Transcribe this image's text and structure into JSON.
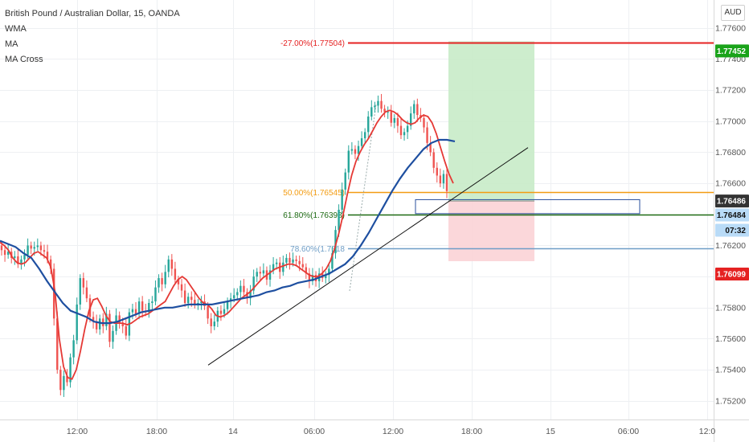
{
  "legend": {
    "title": "British Pound / Australian Dollar, 15, OANDA",
    "indicators": [
      "WMA",
      "MA",
      "MA Cross"
    ]
  },
  "currency_label": "AUD",
  "colors": {
    "candle_up": "#26a69a",
    "candle_down": "#ef5350",
    "wma_line": "#e53935",
    "ma_line": "#1e4fa0",
    "fib_neg27": "#e52222",
    "fib_50": "#f39c12",
    "fib_618": "#1f6b14",
    "fib_786": "#6f9ec7",
    "profit_zone": "#c8ebc8",
    "loss_zone": "#fbd3d6",
    "tag_green": "#1aa31a",
    "tag_red": "#e52222",
    "tag_blue": "#2262c6",
    "tag_lightblue": "#b9dbf7"
  },
  "chart_data": {
    "type": "candlestick",
    "symbol": "British Pound / Australian Dollar",
    "timeframe": "15",
    "source": "OANDA",
    "ylim": [
      1.7508,
      1.7778
    ],
    "y_ticks": [
      "1.75200",
      "1.75400",
      "1.75600",
      "1.75800",
      "1.76000",
      "1.76200",
      "1.76400",
      "1.76600",
      "1.76800",
      "1.77000",
      "1.77200",
      "1.77400",
      "1.77600",
      "1.7..."
    ],
    "x_ticks": [
      "12:00",
      "18:00",
      "14",
      "06:00",
      "12:00",
      "18:00",
      "15",
      "06:00",
      "12:0"
    ],
    "candles_close": [
      1.7617,
      1.7614,
      1.7616,
      1.7612,
      1.7613,
      1.7608,
      1.7611,
      1.7614,
      1.762,
      1.7618,
      1.7619,
      1.762,
      1.7617,
      1.7616,
      1.7611,
      1.7605,
      1.7573,
      1.754,
      1.7527,
      1.7536,
      1.7532,
      1.7548,
      1.7559,
      1.7582,
      1.7599,
      1.7593,
      1.7586,
      1.7574,
      1.7571,
      1.7566,
      1.7573,
      1.7568,
      1.7576,
      1.7558,
      1.7565,
      1.7575,
      1.757,
      1.7568,
      1.7562,
      1.7577,
      1.7579,
      1.7576,
      1.7584,
      1.7578,
      1.7577,
      1.7583,
      1.7584,
      1.7593,
      1.7599,
      1.7595,
      1.7603,
      1.7611,
      1.7605,
      1.7598,
      1.7595,
      1.7591,
      1.7583,
      1.7587,
      1.7585,
      1.7582,
      1.7583,
      1.7584,
      1.7581,
      1.7573,
      1.7568,
      1.7571,
      1.7578,
      1.7576,
      1.7579,
      1.7584,
      1.7586,
      1.7588,
      1.759,
      1.7594,
      1.759,
      1.7586,
      1.7591,
      1.76,
      1.7603,
      1.7602,
      1.7604,
      1.7598,
      1.7604,
      1.7608,
      1.7609,
      1.7603,
      1.7609,
      1.7612,
      1.7609,
      1.7611,
      1.761,
      1.7608,
      1.7606,
      1.7602,
      1.7597,
      1.7601,
      1.7597,
      1.7602,
      1.7599,
      1.7601,
      1.7605,
      1.7615,
      1.763,
      1.7643,
      1.7656,
      1.7667,
      1.7681,
      1.7682,
      1.7679,
      1.7684,
      1.7689,
      1.7693,
      1.7703,
      1.7709,
      1.771,
      1.7713,
      1.7708,
      1.7706,
      1.7706,
      1.7699,
      1.7702,
      1.7697,
      1.7691,
      1.7693,
      1.7697,
      1.7705,
      1.7711,
      1.7704,
      1.7702,
      1.7696,
      1.7686,
      1.768,
      1.767,
      1.7665,
      1.766,
      1.7666,
      1.7655
    ],
    "wma": [
      1.7622,
      1.762,
      1.7617,
      1.7612,
      1.7609,
      1.7608,
      1.7609,
      1.7612,
      1.7615,
      1.7616,
      1.7614,
      1.7612,
      1.7606,
      1.759,
      1.756,
      1.7542,
      1.7535,
      1.7534,
      1.754,
      1.7552,
      1.7566,
      1.7578,
      1.7585,
      1.7586,
      1.7581,
      1.7575,
      1.7571,
      1.757,
      1.757,
      1.757,
      1.7569,
      1.757,
      1.7572,
      1.7574,
      1.7575,
      1.7576,
      1.7578,
      1.758,
      1.7582,
      1.7584,
      1.7589,
      1.7594,
      1.7598,
      1.76,
      1.7598,
      1.7594,
      1.759,
      1.7586,
      1.7583,
      1.7582,
      1.7579,
      1.7575,
      1.7574,
      1.7575,
      1.7577,
      1.758,
      1.7583,
      1.7586,
      1.7588,
      1.759,
      1.7593,
      1.7596,
      1.7599,
      1.7601,
      1.7603,
      1.7605,
      1.7606,
      1.7607,
      1.7608,
      1.7608,
      1.7607,
      1.7605,
      1.7603,
      1.7601,
      1.76,
      1.76,
      1.7602,
      1.7605,
      1.761,
      1.7618,
      1.7628,
      1.764,
      1.7653,
      1.7665,
      1.7674,
      1.768,
      1.7685,
      1.7689,
      1.7694,
      1.7699,
      1.7703,
      1.7706,
      1.7707,
      1.7706,
      1.7704,
      1.7701,
      1.7699,
      1.7698,
      1.7699,
      1.7702,
      1.7704,
      1.7703,
      1.7699,
      1.7692,
      1.7683,
      1.7674,
      1.7666,
      1.766
    ],
    "ma": [
      1.7623,
      1.7621,
      1.7619,
      1.7615,
      1.7612,
      1.7605,
      1.7597,
      1.759,
      1.7583,
      1.7578,
      1.7576,
      1.7574,
      1.7571,
      1.757,
      1.757,
      1.7571,
      1.7573,
      1.7575,
      1.7577,
      1.7578,
      1.7579,
      1.758,
      1.758,
      1.7581,
      1.7582,
      1.7582,
      1.7582,
      1.7582,
      1.7583,
      1.7584,
      1.7585,
      1.7586,
      1.7587,
      1.7588,
      1.759,
      1.7591,
      1.7593,
      1.7594,
      1.7596,
      1.7597,
      1.7598,
      1.76,
      1.7602,
      1.7605,
      1.7608,
      1.7613,
      1.762,
      1.7628,
      1.7637,
      1.7646,
      1.7655,
      1.7663,
      1.767,
      1.7676,
      1.7682,
      1.7686,
      1.7688,
      1.7688,
      1.7687
    ],
    "fib_levels": [
      {
        "label": "-27.00%(1.77504)",
        "value": 1.77504
      },
      {
        "label": "50.00%(1.76545)",
        "value": 1.76545
      },
      {
        "label": "61.80%(1.76398)",
        "value": 1.76398
      },
      {
        "label": "78.60%(1.7618",
        "value": 1.7618
      }
    ],
    "position": {
      "entry": 1.76486,
      "target": 1.77452,
      "stop": 1.76099
    },
    "trendline": {
      "x_start_label": "",
      "from": 1.7543,
      "to": 1.7683
    },
    "price_tags": [
      {
        "label": "1.77452",
        "color": "green"
      },
      {
        "label": "1.76486",
        "color": "dark"
      },
      {
        "label": "1.76484",
        "color": "lightblue"
      },
      {
        "label": "07:32",
        "color": "lightblue"
      },
      {
        "label": "1.76099",
        "color": "red"
      }
    ]
  }
}
